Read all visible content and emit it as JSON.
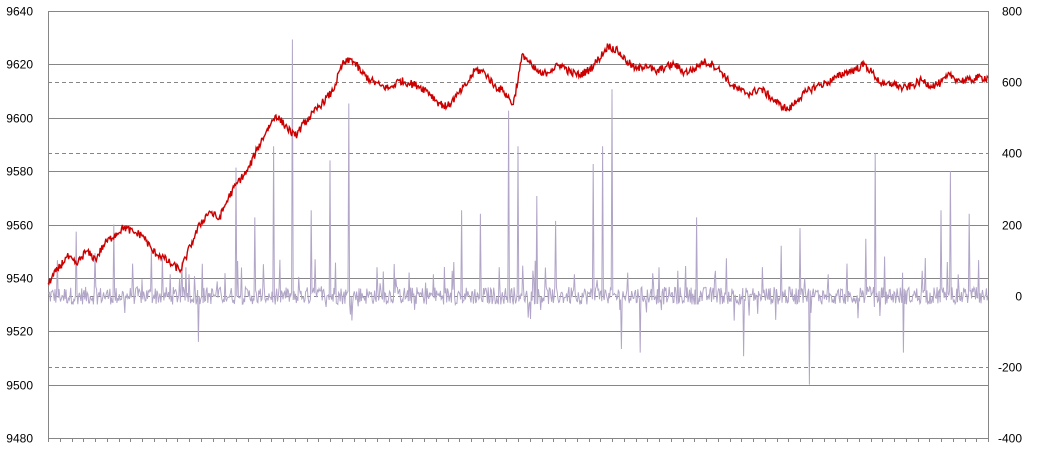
{
  "chart_data": {
    "type": "line",
    "title": "",
    "xlabel": "",
    "ylabel": "",
    "y_left": {
      "range": [
        9480,
        9640
      ],
      "ticks": [
        "9640",
        "9620",
        "9600",
        "9580",
        "9560",
        "9540",
        "9520",
        "9500",
        "9480"
      ]
    },
    "y_right": {
      "range": [
        -400,
        800
      ],
      "ticks": [
        "800",
        "600",
        "400",
        "200",
        "0",
        "-200",
        "-400"
      ]
    },
    "grid": true,
    "legend": "none",
    "series": [
      {
        "axis": "left",
        "color": "#cc0000",
        "style": "solid",
        "x_range": [
          0,
          100
        ],
        "values": [
          9538,
          9543,
          9548,
          9545,
          9550,
          9547,
          9553,
          9556,
          9559,
          9557,
          9556,
          9550,
          9548,
          9545,
          9543,
          9552,
          9560,
          9565,
          9562,
          9570,
          9576,
          9580,
          9588,
          9595,
          9601,
          9597,
          9593,
          9598,
          9602,
          9606,
          9610,
          9620,
          9622,
          9617,
          9614,
          9612,
          9611,
          9614,
          9613,
          9612,
          9610,
          9606,
          9604,
          9608,
          9612,
          9618,
          9617,
          9612,
          9610,
          9605,
          9624,
          9619,
          9616,
          9618,
          9620,
          9617,
          9616,
          9618,
          9622,
          9627,
          9625,
          9621,
          9618,
          9620,
          9617,
          9619,
          9620,
          9617,
          9618,
          9621,
          9620,
          9617,
          9612,
          9610,
          9609,
          9611,
          9608,
          9605,
          9603,
          9607,
          9610,
          9612,
          9613,
          9615,
          9617,
          9618,
          9620,
          9616,
          9612,
          9613,
          9611,
          9612,
          9614,
          9612,
          9613,
          9616,
          9614,
          9614,
          9615,
          9615
        ]
      },
      {
        "axis": "right",
        "color": "#b2a6c8",
        "style": "spiky",
        "x_range": [
          0,
          100
        ],
        "baseline": 0,
        "spikes": [
          [
            1,
            100
          ],
          [
            3,
            180
          ],
          [
            5,
            120
          ],
          [
            7,
            200
          ],
          [
            9,
            90
          ],
          [
            11,
            130
          ],
          [
            13,
            60
          ],
          [
            15,
            60
          ],
          [
            16,
            -130
          ],
          [
            18,
            40
          ],
          [
            20,
            360
          ],
          [
            22,
            220
          ],
          [
            24,
            420
          ],
          [
            26,
            720
          ],
          [
            28,
            240
          ],
          [
            30,
            380
          ],
          [
            32,
            540
          ],
          [
            33,
            -30
          ],
          [
            35,
            80
          ],
          [
            37,
            50
          ],
          [
            39,
            -40
          ],
          [
            41,
            60
          ],
          [
            43,
            70
          ],
          [
            44,
            240
          ],
          [
            46,
            230
          ],
          [
            48,
            80
          ],
          [
            49,
            520
          ],
          [
            50,
            420
          ],
          [
            52,
            280
          ],
          [
            54,
            210
          ],
          [
            56,
            60
          ],
          [
            58,
            370
          ],
          [
            59,
            420
          ],
          [
            60,
            580
          ],
          [
            61,
            -150
          ],
          [
            63,
            -160
          ],
          [
            65,
            80
          ],
          [
            67,
            70
          ],
          [
            69,
            220
          ],
          [
            71,
            70
          ],
          [
            73,
            -70
          ],
          [
            74,
            -170
          ],
          [
            76,
            80
          ],
          [
            78,
            140
          ],
          [
            80,
            190
          ],
          [
            81,
            -250
          ],
          [
            83,
            60
          ],
          [
            85,
            90
          ],
          [
            87,
            160
          ],
          [
            88,
            400
          ],
          [
            89,
            110
          ],
          [
            91,
            -160
          ],
          [
            93,
            70
          ],
          [
            95,
            240
          ],
          [
            96,
            350
          ],
          [
            98,
            230
          ],
          [
            99,
            100
          ]
        ]
      }
    ]
  }
}
